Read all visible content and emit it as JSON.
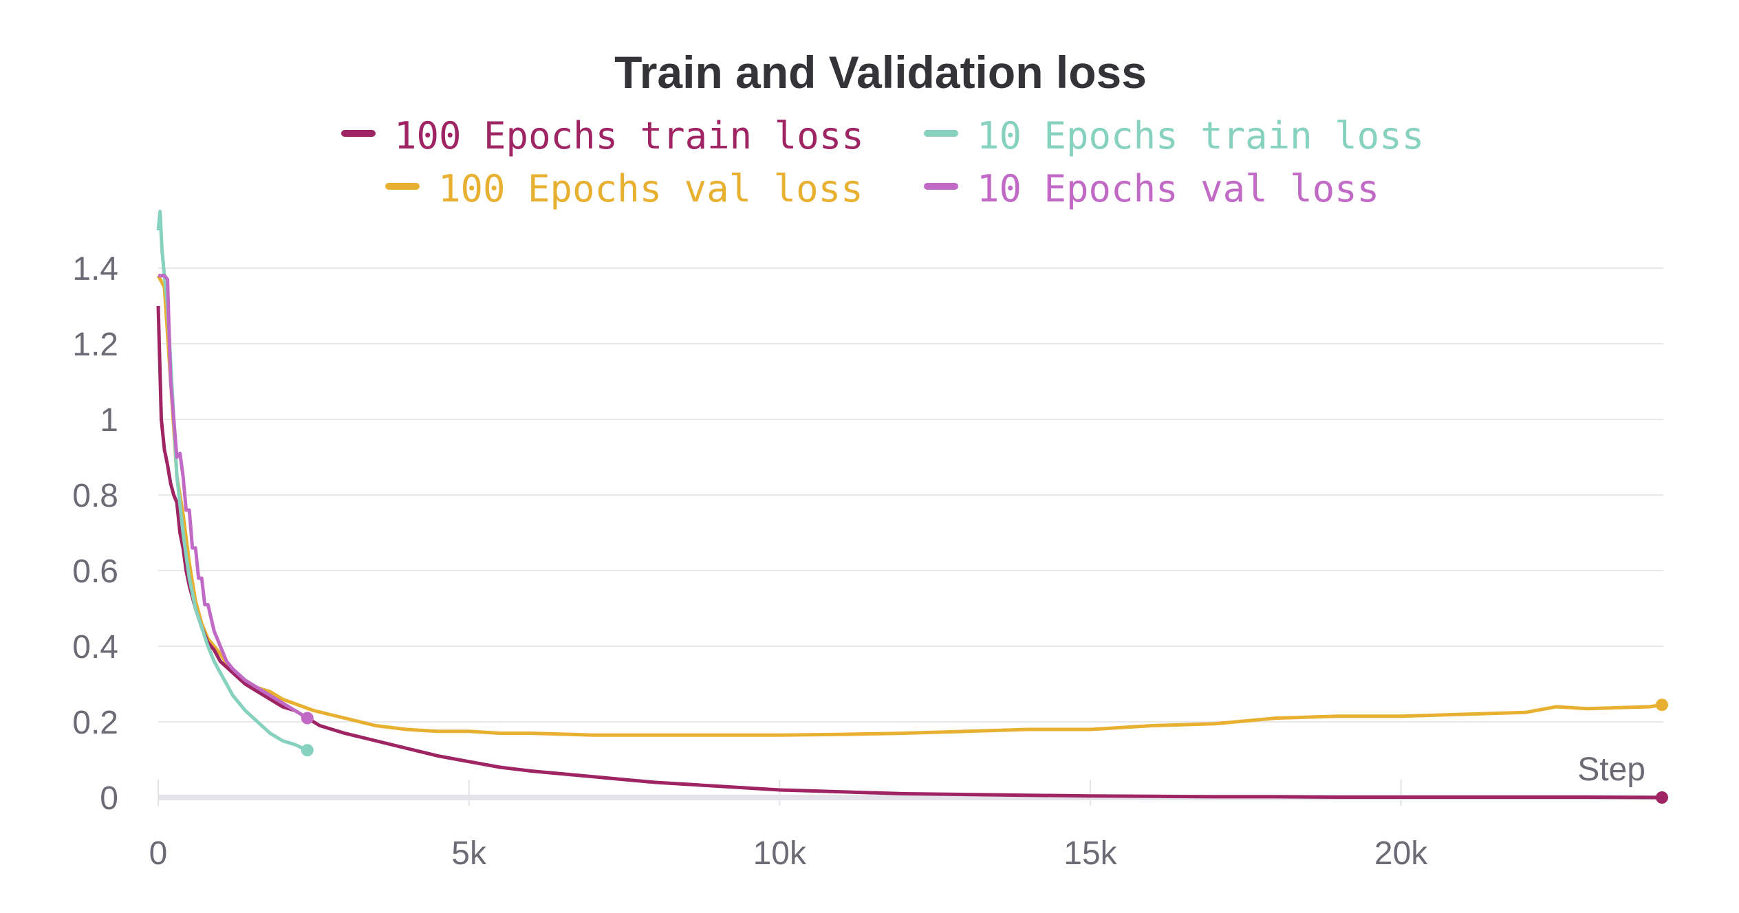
{
  "chart_data": {
    "type": "line",
    "title": "Train and Validation loss",
    "xlabel": "Step",
    "ylabel": "",
    "xlim": [
      0,
      24200
    ],
    "ylim": [
      0,
      1.5
    ],
    "x_ticks": [
      0,
      5000,
      10000,
      15000,
      20000
    ],
    "x_tick_labels": [
      "0",
      "5k",
      "10k",
      "15k",
      "20k"
    ],
    "y_ticks": [
      0,
      0.2,
      0.4,
      0.6,
      0.8,
      1,
      1.2,
      1.4
    ],
    "y_tick_labels": [
      "0",
      "0.2",
      "0.4",
      "0.6",
      "0.8",
      "1",
      "1.2",
      "1.4"
    ],
    "grid": true,
    "legend_position": "top-center",
    "series": [
      {
        "name": "100 Epochs train loss",
        "color": "#9e2463",
        "x": [
          0,
          50,
          100,
          150,
          200,
          250,
          300,
          350,
          400,
          450,
          500,
          600,
          700,
          800,
          900,
          1000,
          1200,
          1400,
          1600,
          1800,
          2000,
          2200,
          2400,
          2600,
          3000,
          3500,
          4000,
          4500,
          5000,
          5500,
          6000,
          7000,
          8000,
          9000,
          10000,
          11000,
          12000,
          13000,
          14000,
          15000,
          16000,
          17000,
          18000,
          19000,
          20000,
          21000,
          22000,
          23000,
          24200
        ],
        "values": [
          1.3,
          1.0,
          0.92,
          0.88,
          0.83,
          0.8,
          0.78,
          0.7,
          0.66,
          0.6,
          0.56,
          0.5,
          0.45,
          0.41,
          0.39,
          0.36,
          0.33,
          0.3,
          0.28,
          0.26,
          0.24,
          0.23,
          0.21,
          0.19,
          0.17,
          0.15,
          0.13,
          0.11,
          0.095,
          0.08,
          0.07,
          0.055,
          0.04,
          0.03,
          0.02,
          0.015,
          0.01,
          0.008,
          0.006,
          0.004,
          0.003,
          0.002,
          0.002,
          0.001,
          0.001,
          0.001,
          0.001,
          0.001,
          0.0
        ]
      },
      {
        "name": "100 Epochs val loss",
        "color": "#e8b030",
        "x": [
          0,
          100,
          200,
          300,
          400,
          500,
          600,
          700,
          800,
          1000,
          1200,
          1400,
          1600,
          1800,
          2000,
          2500,
          3000,
          3500,
          4000,
          4500,
          5000,
          5500,
          6000,
          7000,
          8000,
          9000,
          10000,
          11000,
          12000,
          13000,
          14000,
          15000,
          16000,
          17000,
          18000,
          19000,
          20000,
          21000,
          22000,
          22500,
          23000,
          24000,
          24200
        ],
        "values": [
          1.38,
          1.35,
          1.1,
          0.85,
          0.75,
          0.62,
          0.52,
          0.46,
          0.42,
          0.38,
          0.33,
          0.31,
          0.29,
          0.28,
          0.26,
          0.23,
          0.21,
          0.19,
          0.18,
          0.175,
          0.175,
          0.17,
          0.17,
          0.165,
          0.165,
          0.165,
          0.165,
          0.167,
          0.17,
          0.175,
          0.18,
          0.18,
          0.19,
          0.195,
          0.21,
          0.215,
          0.215,
          0.22,
          0.225,
          0.24,
          0.235,
          0.24,
          0.245
        ]
      },
      {
        "name": "10 Epochs train loss",
        "color": "#87d1bf",
        "x": [
          0,
          30,
          60,
          100,
          150,
          200,
          250,
          300,
          400,
          500,
          600,
          700,
          800,
          900,
          1000,
          1200,
          1400,
          1600,
          1800,
          2000,
          2200,
          2400
        ],
        "values": [
          1.5,
          1.55,
          1.45,
          1.38,
          1.3,
          1.15,
          1.0,
          0.85,
          0.7,
          0.58,
          0.5,
          0.45,
          0.4,
          0.36,
          0.33,
          0.27,
          0.23,
          0.2,
          0.17,
          0.15,
          0.14,
          0.125
        ]
      },
      {
        "name": "10 Epochs val loss",
        "color": "#c06ac6",
        "x": [
          0,
          100,
          150,
          200,
          250,
          300,
          350,
          400,
          450,
          500,
          550,
          600,
          650,
          700,
          750,
          800,
          900,
          1000,
          1100,
          1200,
          1400,
          1600,
          1800,
          2000,
          2200,
          2400
        ],
        "values": [
          1.38,
          1.38,
          1.37,
          1.1,
          1.0,
          0.9,
          0.91,
          0.85,
          0.76,
          0.76,
          0.66,
          0.66,
          0.58,
          0.58,
          0.51,
          0.51,
          0.44,
          0.4,
          0.36,
          0.34,
          0.31,
          0.29,
          0.27,
          0.25,
          0.23,
          0.21
        ]
      }
    ]
  }
}
